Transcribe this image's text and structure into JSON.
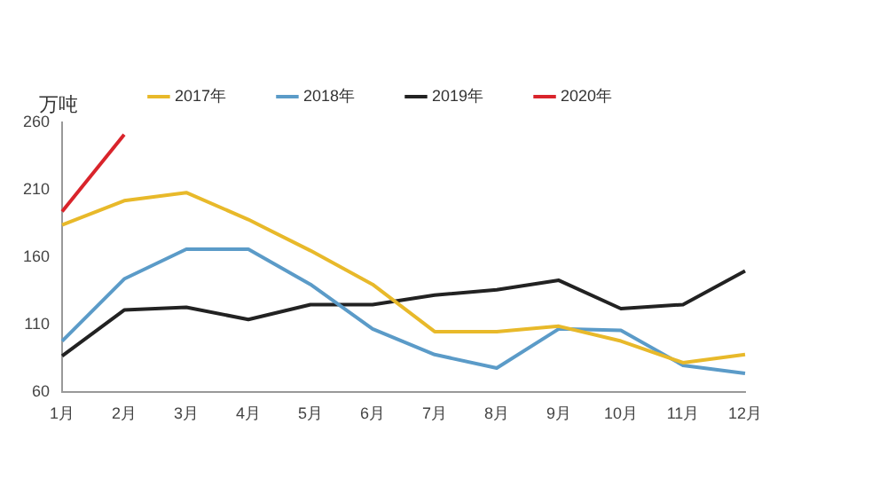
{
  "chart_data": {
    "type": "line",
    "ylabel": "万吨",
    "categories": [
      "1月",
      "2月",
      "3月",
      "4月",
      "5月",
      "6月",
      "7月",
      "8月",
      "9月",
      "10月",
      "11月",
      "12月"
    ],
    "series": [
      {
        "name": "2017年",
        "color": "#e8b92a",
        "values": [
          184,
          202,
          208,
          188,
          165,
          140,
          105,
          105,
          109,
          98,
          82,
          88
        ]
      },
      {
        "name": "2018年",
        "color": "#5b9bc8",
        "values": [
          98,
          144,
          166,
          166,
          140,
          107,
          88,
          78,
          107,
          106,
          80,
          74
        ]
      },
      {
        "name": "2019年",
        "color": "#222222",
        "values": [
          87,
          121,
          123,
          114,
          125,
          125,
          132,
          136,
          143,
          122,
          125,
          150
        ]
      },
      {
        "name": "2020年",
        "color": "#d9242b",
        "values": [
          194,
          251,
          null,
          null,
          null,
          null,
          null,
          null,
          null,
          null,
          null,
          null
        ]
      }
    ],
    "ylim": [
      60,
      260
    ],
    "yticks": [
      60,
      110,
      160,
      210,
      260
    ],
    "grid": false,
    "legend": "top",
    "marker": "none",
    "line_style": "solid"
  }
}
